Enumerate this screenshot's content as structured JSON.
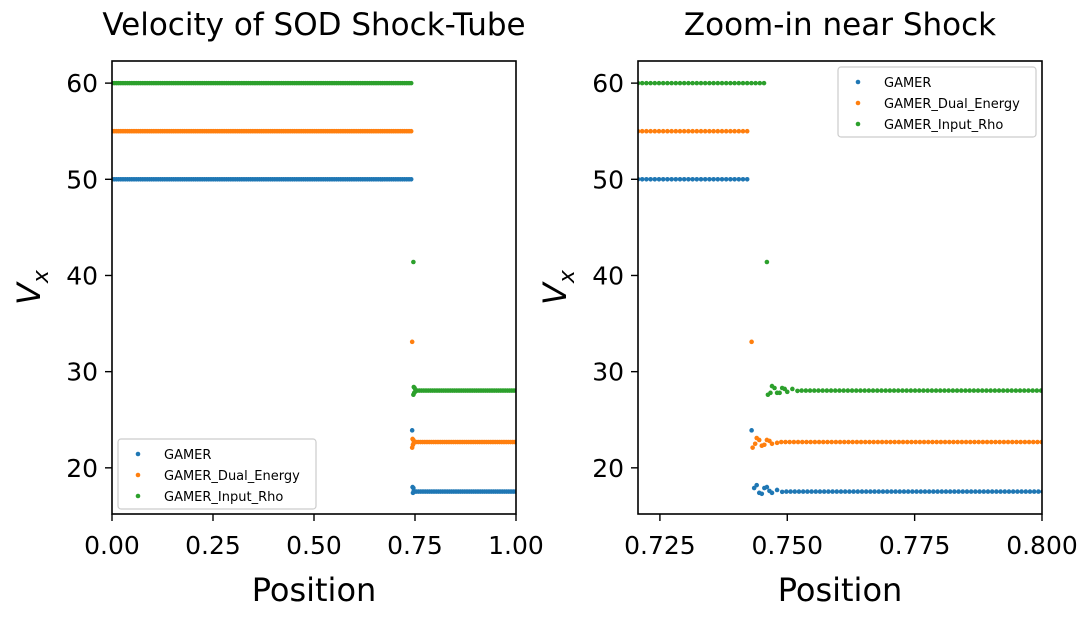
{
  "chart_data": [
    {
      "type": "scatter",
      "title": "Velocity of SOD Shock-Tube",
      "xlabel": "Position",
      "ylabel_base": "V",
      "ylabel_sub": "x",
      "xlim": [
        0.0,
        1.0
      ],
      "ylim": [
        15.2,
        62.3
      ],
      "xticks": [
        0.0,
        0.25,
        0.5,
        0.75,
        1.0
      ],
      "xtick_labels": [
        "0.00",
        "0.25",
        "0.50",
        "0.75",
        "1.00"
      ],
      "yticks": [
        20,
        30,
        40,
        50,
        60
      ],
      "ytick_labels": [
        "20",
        "30",
        "40",
        "50",
        "60"
      ],
      "legend_position": "lower-left",
      "series": [
        {
          "name": "GAMER",
          "color": "#1f77b4",
          "y_left": 50.0,
          "y_right": 17.53,
          "shock_x": 0.743,
          "spike": [
            0.743,
            23.9
          ],
          "bump": [
            [
              0.744,
              18.0
            ],
            [
              0.745,
              17.4
            ],
            [
              0.746,
              17.9
            ],
            [
              0.747,
              17.6
            ],
            [
              0.748,
              17.5
            ]
          ]
        },
        {
          "name": "GAMER_Dual_Energy",
          "color": "#ff7f0e",
          "y_left": 55.0,
          "y_right": 22.68,
          "shock_x": 0.743,
          "spike": [
            0.743,
            33.1
          ],
          "bump": [
            [
              0.743,
              22.1
            ],
            [
              0.744,
              23.0
            ],
            [
              0.745,
              22.4
            ],
            [
              0.746,
              22.9
            ],
            [
              0.747,
              22.6
            ]
          ]
        },
        {
          "name": "GAMER_Input_Rho",
          "color": "#2ca02c",
          "y_left": 60.0,
          "y_right": 28.03,
          "shock_x": 0.746,
          "spike": [
            0.746,
            41.4
          ],
          "bump": [
            [
              0.746,
              27.6
            ],
            [
              0.747,
              28.4
            ],
            [
              0.748,
              27.8
            ],
            [
              0.749,
              28.3
            ],
            [
              0.75,
              27.9
            ]
          ]
        }
      ]
    },
    {
      "type": "scatter",
      "title": "Zoom-in near Shock",
      "xlabel": "Position",
      "ylabel_base": "V",
      "ylabel_sub": "x",
      "xlim": [
        0.7207,
        0.8
      ],
      "ylim": [
        15.2,
        62.3
      ],
      "xticks": [
        0.725,
        0.75,
        0.775,
        0.8
      ],
      "xtick_labels": [
        "0.725",
        "0.750",
        "0.775",
        "0.800"
      ],
      "yticks": [
        20,
        30,
        40,
        50,
        60
      ],
      "ytick_labels": [
        "20",
        "30",
        "40",
        "50",
        "60"
      ],
      "legend_position": "upper-right",
      "series": [
        {
          "name": "GAMER",
          "color": "#1f77b4",
          "y_left": 50.0,
          "y_right": 17.53,
          "shock_x": 0.743,
          "spike": [
            0.743,
            23.9
          ],
          "bump": [
            [
              0.7435,
              17.9
            ],
            [
              0.744,
              18.2
            ],
            [
              0.7445,
              17.4
            ],
            [
              0.745,
              17.3
            ],
            [
              0.7455,
              17.9
            ],
            [
              0.746,
              18.0
            ],
            [
              0.7465,
              17.6
            ],
            [
              0.747,
              17.4
            ],
            [
              0.748,
              17.7
            ],
            [
              0.749,
              17.5
            ]
          ]
        },
        {
          "name": "GAMER_Dual_Energy",
          "color": "#ff7f0e",
          "y_left": 55.0,
          "y_right": 22.68,
          "shock_x": 0.743,
          "spike": [
            0.743,
            33.1
          ],
          "bump": [
            [
              0.7432,
              22.1
            ],
            [
              0.7437,
              22.5
            ],
            [
              0.744,
              23.1
            ],
            [
              0.7445,
              22.9
            ],
            [
              0.745,
              22.3
            ],
            [
              0.7455,
              22.4
            ],
            [
              0.746,
              22.9
            ],
            [
              0.7465,
              22.8
            ],
            [
              0.747,
              22.5
            ],
            [
              0.748,
              22.6
            ]
          ]
        },
        {
          "name": "GAMER_Input_Rho",
          "color": "#2ca02c",
          "y_left": 60.0,
          "y_right": 28.03,
          "shock_x": 0.746,
          "spike": [
            0.746,
            41.4
          ],
          "bump": [
            [
              0.7462,
              27.6
            ],
            [
              0.7467,
              27.8
            ],
            [
              0.747,
              28.5
            ],
            [
              0.7475,
              28.3
            ],
            [
              0.748,
              27.8
            ],
            [
              0.7485,
              27.8
            ],
            [
              0.749,
              28.3
            ],
            [
              0.7495,
              28.2
            ],
            [
              0.75,
              27.9
            ],
            [
              0.751,
              28.2
            ],
            [
              0.752,
              28.0
            ]
          ]
        }
      ]
    }
  ]
}
